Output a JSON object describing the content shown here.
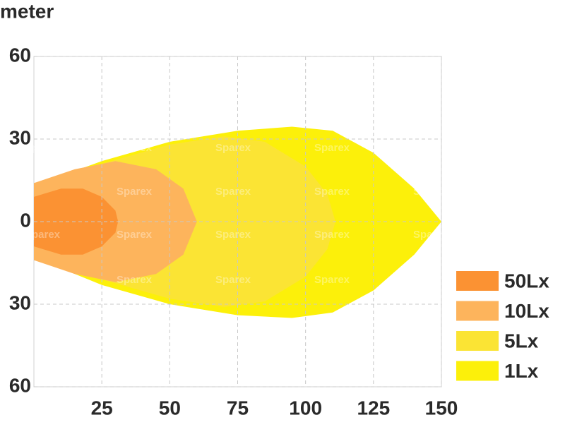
{
  "chart_data": {
    "type": "contour",
    "y_label": "meter",
    "watermark": "Sparex",
    "xlim": [
      0,
      150
    ],
    "xticks": [
      25,
      50,
      75,
      100,
      125,
      150
    ],
    "ylim": [
      -60,
      60
    ],
    "yticks": [
      60,
      30,
      0,
      {
        "value": -30,
        "label": "30"
      },
      {
        "value": -60,
        "label": "60"
      }
    ],
    "grid": true,
    "legend": "lower right",
    "series": [
      {
        "name": "50Lx",
        "color": "#fb9233",
        "x": [
          0,
          10,
          18,
          25,
          30,
          31,
          30,
          25,
          18,
          10,
          0
        ],
        "y": [
          9,
          12,
          12,
          9,
          4,
          0,
          -4,
          -9,
          -12,
          -12,
          -9
        ]
      },
      {
        "name": "10Lx",
        "color": "#fdb45c",
        "x": [
          0,
          15,
          30,
          45,
          55,
          60,
          55,
          45,
          30,
          15,
          0
        ],
        "y": [
          14,
          19,
          22,
          19,
          12,
          0,
          -12,
          -19,
          -22,
          -19,
          -14
        ]
      },
      {
        "name": "5Lx",
        "color": "#fbe434",
        "x": [
          0,
          25,
          50,
          70,
          85,
          100,
          108,
          111,
          108,
          100,
          85,
          70,
          50,
          25,
          0
        ],
        "y": [
          12,
          21,
          28,
          31,
          29,
          20,
          10,
          0,
          -10,
          -20,
          -29,
          -31,
          -28,
          -21,
          -12
        ]
      },
      {
        "name": "1Lx",
        "color": "#fcf00a",
        "x": [
          0,
          25,
          50,
          75,
          95,
          110,
          125,
          140,
          150,
          140,
          125,
          110,
          95,
          75,
          50,
          25,
          0
        ],
        "y": [
          13,
          22,
          29,
          33,
          34.5,
          33,
          25,
          12,
          0,
          -12,
          -25,
          -33,
          -35,
          -34,
          -30,
          -23,
          -13
        ]
      }
    ]
  }
}
